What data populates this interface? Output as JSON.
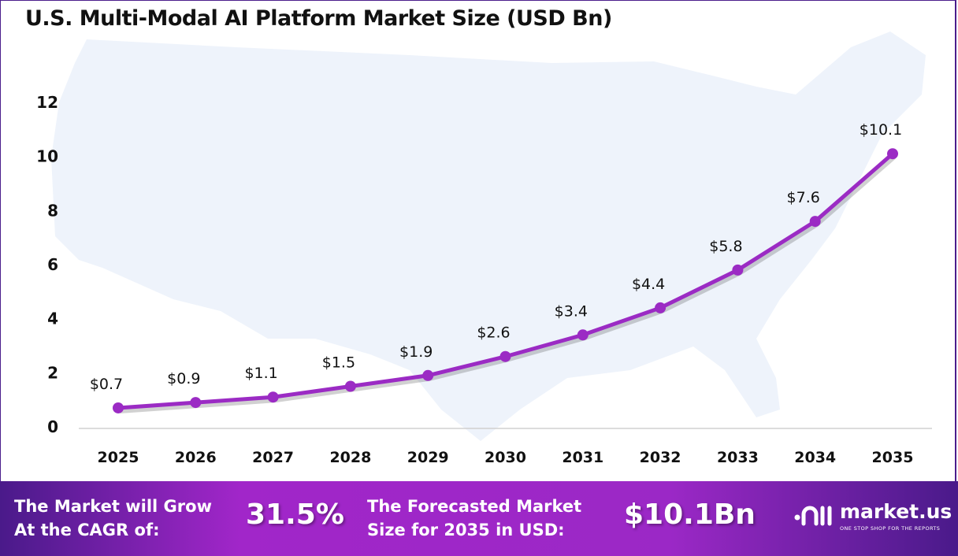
{
  "title": "U.S. Multi-Modal AI Platform Market Size (USD Bn)",
  "chart_data": {
    "type": "line",
    "title": "U.S. Multi-Modal AI Platform Market Size (USD Bn)",
    "categories": [
      "2025",
      "2026",
      "2027",
      "2028",
      "2029",
      "2030",
      "2031",
      "2032",
      "2033",
      "2034",
      "2035"
    ],
    "values": [
      0.7,
      0.9,
      1.1,
      1.5,
      1.9,
      2.6,
      3.4,
      4.4,
      5.8,
      7.6,
      10.1
    ],
    "data_labels": [
      "$0.7",
      "$0.9",
      "$1.1",
      "$1.5",
      "$1.9",
      "$2.6",
      "$3.4",
      "$4.4",
      "$5.8",
      "$7.6",
      "$10.1"
    ],
    "yticks": [
      "0",
      "2",
      "4",
      "6",
      "8",
      "10",
      "12"
    ],
    "ylim": [
      0,
      12
    ],
    "xlabel": "",
    "ylabel": "",
    "grid": false,
    "legend": "none",
    "line_color": "#9b2bc4",
    "background_map": "USA silhouette"
  },
  "banner": {
    "cagr_label_line1": "The Market will Grow",
    "cagr_label_line2": "At the CAGR of:",
    "cagr_value": "31.5%",
    "forecast_label_line1": "The Forecasted Market",
    "forecast_label_line2": "Size for 2035 in USD:",
    "forecast_value": "$10.1Bn",
    "logo_name": "market.us",
    "logo_tagline": "ONE STOP SHOP FOR THE REPORTS"
  }
}
